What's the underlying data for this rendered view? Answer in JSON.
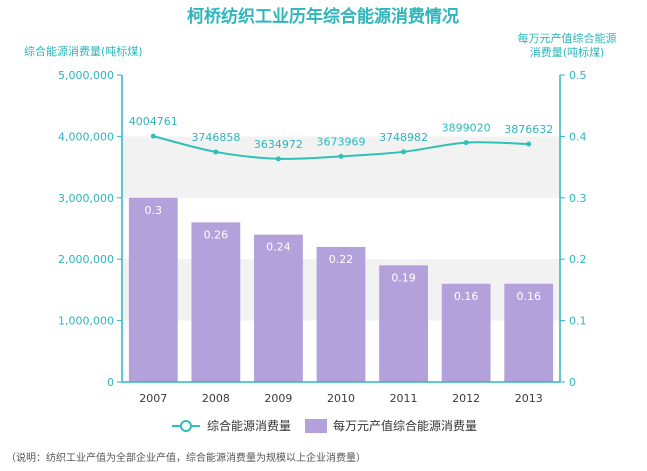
{
  "chart_data": {
    "type": "bar",
    "title": "柯桥纺织工业历年综合能源消费情况",
    "categories": [
      "2007",
      "2008",
      "2009",
      "2010",
      "2011",
      "2012",
      "2013"
    ],
    "series": [
      {
        "name": "每万元产值综合能源消费量",
        "type": "bar",
        "axis": "right",
        "values": [
          0.3,
          0.26,
          0.24,
          0.22,
          0.19,
          0.16,
          0.16
        ],
        "labels": [
          "0.3",
          "0.26",
          "0.24",
          "0.22",
          "0.19",
          "0.16",
          "0.16"
        ],
        "color": "#b3a1dc"
      },
      {
        "name": "综合能源消费量",
        "type": "line",
        "axis": "left",
        "values": [
          4004761,
          3746858,
          3634972,
          3673969,
          3748982,
          3899020,
          3876632
        ],
        "labels": [
          "4004761",
          "3746858",
          "3634972",
          "3673969",
          "3748982",
          "3899020",
          "3876632"
        ],
        "color": "#2fc1b8"
      }
    ],
    "ylabel_left": "综合能源消费量(吨标煤)",
    "ylabel_right": [
      "每万元产值综合能源",
      "消费量(吨标煤)"
    ],
    "ylim_left": [
      0,
      5000000
    ],
    "ylim_right": [
      0,
      0.5
    ],
    "left_ticks": [
      "0",
      "1,000,000",
      "2,000,000",
      "3,000,000",
      "4,000,000",
      "5,000,000"
    ],
    "right_ticks": [
      "0",
      "0.1",
      "0.2",
      "0.3",
      "0.4",
      "0.5"
    ],
    "grid": true,
    "legend_position": "bottom",
    "axis_color": "#2fb6bd"
  },
  "note": "（说明：纺织工业产值为全部企业产值，综合能源消费量为规模以上企业消费量）"
}
